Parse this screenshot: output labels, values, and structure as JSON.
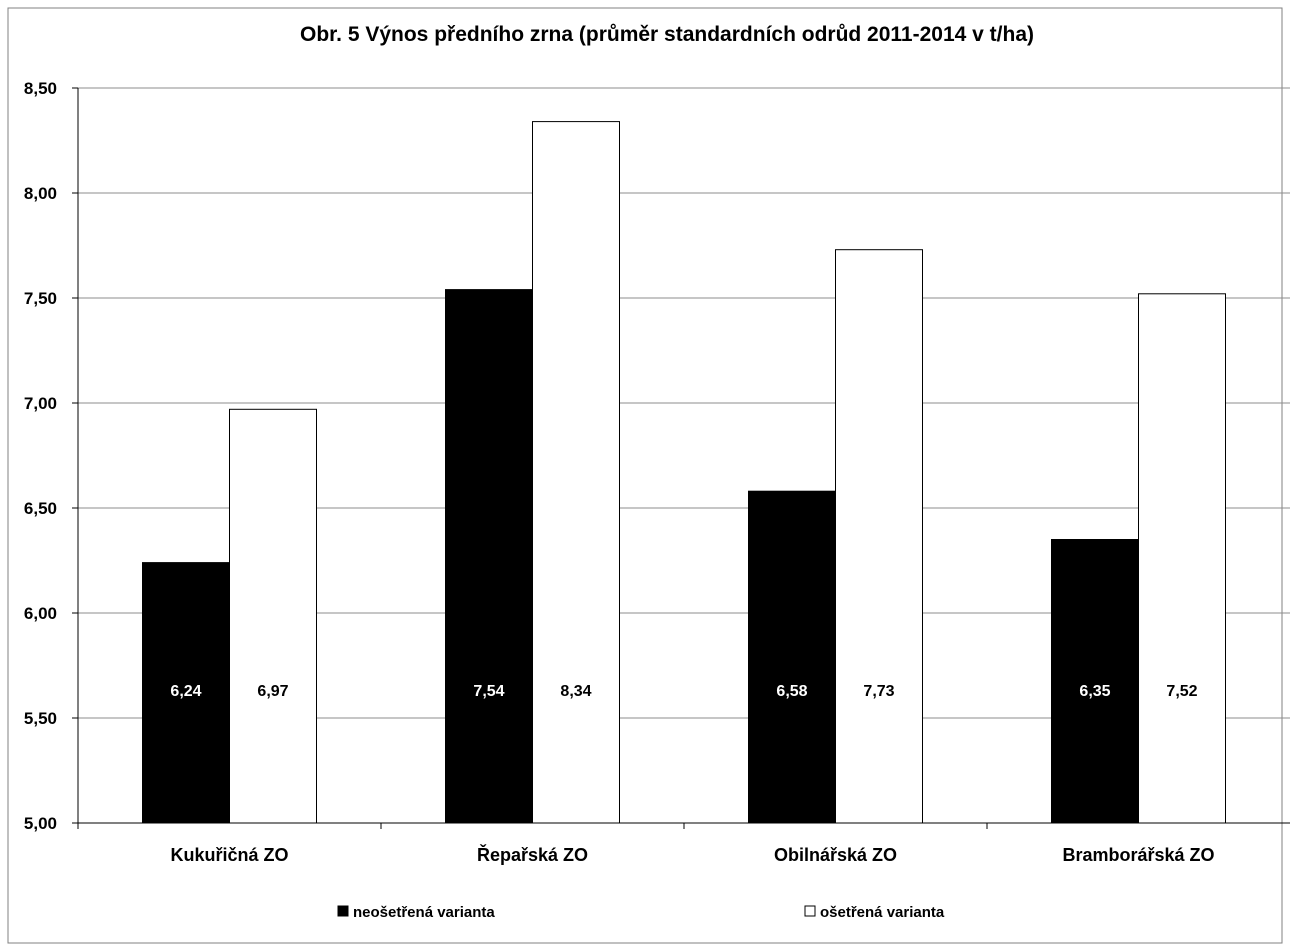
{
  "chart_data": {
    "type": "bar",
    "title": "Obr. 5 Výnos předního zrna (průměr standardních odrůd  2011-2014 v t/ha)",
    "categories": [
      "Kukuřičná ZO",
      "Řepařská ZO",
      "Obilnářská ZO",
      "Bramborářská ZO"
    ],
    "series": [
      {
        "name": "neošetřená varianta",
        "values": [
          6.24,
          7.54,
          6.58,
          6.35
        ],
        "labels": [
          "6,24",
          "7,54",
          "6,58",
          "6,35"
        ],
        "color": "#000000"
      },
      {
        "name": "ošetřená varianta",
        "values": [
          6.97,
          8.34,
          7.73,
          7.52
        ],
        "labels": [
          "6,97",
          "8,34",
          "7,73",
          "7,52"
        ],
        "color": "#ffffff"
      }
    ],
    "ylim": [
      5.0,
      8.5
    ],
    "yticks": [
      5.0,
      5.5,
      6.0,
      6.5,
      7.0,
      7.5,
      8.0,
      8.5
    ],
    "ytick_labels": [
      "5,00",
      "5,50",
      "6,00",
      "6,50",
      "7,00",
      "7,50",
      "8,00",
      "8,50"
    ],
    "xlabel": "",
    "ylabel": "",
    "grid": true,
    "legend": "bottom"
  }
}
